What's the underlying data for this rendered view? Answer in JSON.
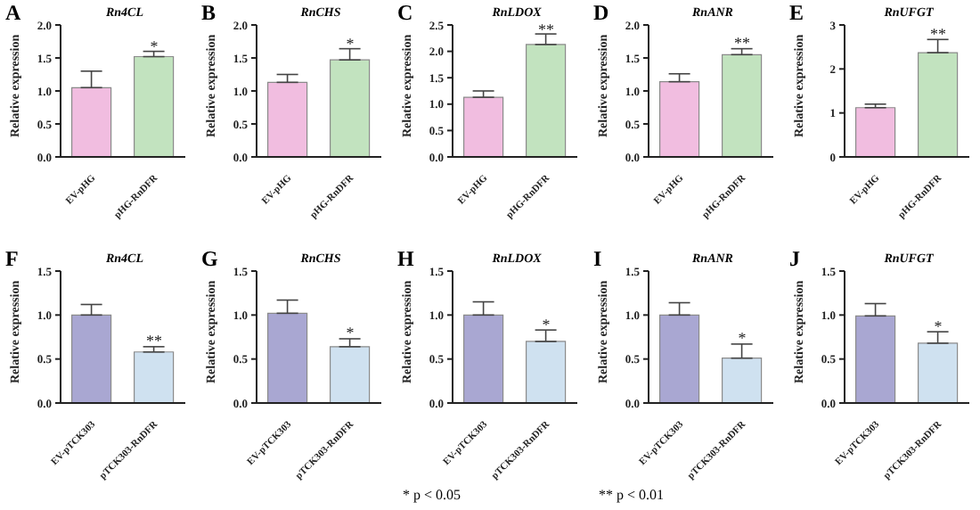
{
  "chart_data": [
    {
      "type": "bar",
      "title": "Rn4CL",
      "ylabel": "Relative expression",
      "categories": [
        "EV-pHG",
        "pHG-RnDFR"
      ],
      "values": [
        1.05,
        1.52
      ],
      "errors": [
        [
          1.05,
          1.3
        ],
        [
          1.52,
          1.6
        ]
      ],
      "colors": [
        "#f1bde0",
        "#c2e3bf"
      ],
      "ylim": [
        0,
        2
      ],
      "yticks": [
        {
          "value": 0,
          "label": "0.0"
        },
        {
          "value": 0.5,
          "label": "0.5"
        },
        {
          "value": 1,
          "label": "1.0"
        },
        {
          "value": 1.5,
          "label": "1.5"
        },
        {
          "value": 2,
          "label": "2.0"
        }
      ],
      "grid": false,
      "annotations": [
        "A",
        {
          "text": "*",
          "x": "pHG-RnDFR",
          "y": 1.68
        }
      ]
    },
    {
      "type": "bar",
      "title": "RnCHS",
      "ylabel": "Relative expression",
      "categories": [
        "EV-pHG",
        "pHG-RnDFR"
      ],
      "values": [
        1.13,
        1.47
      ],
      "errors": [
        [
          1.13,
          1.25
        ],
        [
          1.47,
          1.64
        ]
      ],
      "colors": [
        "#f1bde0",
        "#c2e3bf"
      ],
      "ylim": [
        0,
        2
      ],
      "yticks": [
        {
          "value": 0,
          "label": "0.0"
        },
        {
          "value": 0.5,
          "label": "0.5"
        },
        {
          "value": 1,
          "label": "1.0"
        },
        {
          "value": 1.5,
          "label": "1.5"
        },
        {
          "value": 2,
          "label": "2.0"
        }
      ],
      "grid": false,
      "annotations": [
        "B",
        {
          "text": "*",
          "x": "pHG-RnDFR",
          "y": 1.72
        }
      ]
    },
    {
      "type": "bar",
      "title": "RnLDOX",
      "ylabel": "Relative expression",
      "categories": [
        "EV-pHG",
        "pHG-RnDFR"
      ],
      "values": [
        1.13,
        2.13
      ],
      "errors": [
        [
          1.13,
          1.25
        ],
        [
          2.13,
          2.33
        ]
      ],
      "colors": [
        "#f1bde0",
        "#c2e3bf"
      ],
      "ylim": [
        0,
        2.5
      ],
      "yticks": [
        {
          "value": 0,
          "label": "0.0"
        },
        {
          "value": 0.5,
          "label": "0.5"
        },
        {
          "value": 1,
          "label": "1.0"
        },
        {
          "value": 1.5,
          "label": "1.5"
        },
        {
          "value": 2,
          "label": "2.0"
        },
        {
          "value": 2.5,
          "label": "2.5"
        }
      ],
      "grid": false,
      "annotations": [
        "C",
        {
          "text": "**",
          "x": "pHG-RnDFR",
          "y": 2.43
        }
      ]
    },
    {
      "type": "bar",
      "title": "RnANR",
      "ylabel": "Relative expression",
      "categories": [
        "EV-pHG",
        "pHG-RnDFR"
      ],
      "values": [
        1.14,
        1.55
      ],
      "errors": [
        [
          1.14,
          1.26
        ],
        [
          1.55,
          1.64
        ]
      ],
      "colors": [
        "#f1bde0",
        "#c2e3bf"
      ],
      "ylim": [
        0,
        2
      ],
      "yticks": [
        {
          "value": 0,
          "label": "0.0"
        },
        {
          "value": 0.5,
          "label": "0.5"
        },
        {
          "value": 1,
          "label": "1.0"
        },
        {
          "value": 1.5,
          "label": "1.5"
        },
        {
          "value": 2,
          "label": "2.0"
        }
      ],
      "grid": false,
      "annotations": [
        "D",
        {
          "text": "**",
          "x": "pHG-RnDFR",
          "y": 1.74
        }
      ]
    },
    {
      "type": "bar",
      "title": "RnUFGT",
      "ylabel": "Relative expression",
      "categories": [
        "EV-pHG",
        "pHG-RnDFR"
      ],
      "values": [
        1.12,
        2.37
      ],
      "errors": [
        [
          1.12,
          1.2
        ],
        [
          2.37,
          2.67
        ]
      ],
      "colors": [
        "#f1bde0",
        "#c2e3bf"
      ],
      "ylim": [
        0,
        3
      ],
      "yticks": [
        0,
        1,
        2,
        3
      ],
      "grid": false,
      "annotations": [
        "E",
        {
          "text": "**",
          "x": "pHG-RnDFR",
          "y": 2.8
        }
      ]
    },
    {
      "type": "bar",
      "title": "Rn4CL",
      "ylabel": "Relative expression",
      "categories": [
        "EV-pTCK303",
        "pTCK303-RnDFR"
      ],
      "values": [
        1.0,
        0.58
      ],
      "errors": [
        [
          1.0,
          1.12
        ],
        [
          0.58,
          0.64
        ]
      ],
      "colors": [
        "#a9a7d2",
        "#cfe1f0"
      ],
      "ylim": [
        0,
        1.5
      ],
      "yticks": [
        {
          "value": 0,
          "label": "0.0"
        },
        {
          "value": 0.5,
          "label": "0.5"
        },
        {
          "value": 1,
          "label": "1.0"
        },
        {
          "value": 1.5,
          "label": "1.5"
        }
      ],
      "grid": false,
      "annotations": [
        "F",
        {
          "text": "**",
          "x": "pTCK303-RnDFR",
          "y": 0.71
        }
      ]
    },
    {
      "type": "bar",
      "title": "RnCHS",
      "ylabel": "Relative expression",
      "categories": [
        "EV-pTCK303",
        "pTCK303-RnDFR"
      ],
      "values": [
        1.02,
        0.64
      ],
      "errors": [
        [
          1.02,
          1.17
        ],
        [
          0.64,
          0.73
        ]
      ],
      "colors": [
        "#a9a7d2",
        "#cfe1f0"
      ],
      "ylim": [
        0,
        1.5
      ],
      "yticks": [
        {
          "value": 0,
          "label": "0.0"
        },
        {
          "value": 0.5,
          "label": "0.5"
        },
        {
          "value": 1,
          "label": "1.0"
        },
        {
          "value": 1.5,
          "label": "1.5"
        }
      ],
      "grid": false,
      "annotations": [
        "G",
        {
          "text": "*",
          "x": "pTCK303-RnDFR",
          "y": 0.8
        }
      ]
    },
    {
      "type": "bar",
      "title": "RnLDOX",
      "ylabel": "Relative expression",
      "categories": [
        "EV-pTCK303",
        "pTCK303-RnDFR"
      ],
      "values": [
        1.0,
        0.7
      ],
      "errors": [
        [
          1.0,
          1.15
        ],
        [
          0.7,
          0.83
        ]
      ],
      "colors": [
        "#a9a7d2",
        "#cfe1f0"
      ],
      "ylim": [
        0,
        1.5
      ],
      "yticks": [
        {
          "value": 0,
          "label": "0.0"
        },
        {
          "value": 0.5,
          "label": "0.5"
        },
        {
          "value": 1,
          "label": "1.0"
        },
        {
          "value": 1.5,
          "label": "1.5"
        }
      ],
      "grid": false,
      "annotations": [
        "H",
        {
          "text": "*",
          "x": "pTCK303-RnDFR",
          "y": 0.9
        },
        "* p < 0.05"
      ]
    },
    {
      "type": "bar",
      "title": "RnANR",
      "ylabel": "Relative expression",
      "categories": [
        "EV-pTCK303",
        "pTCK303-RnDFR"
      ],
      "values": [
        1.0,
        0.51
      ],
      "errors": [
        [
          1.0,
          1.14
        ],
        [
          0.51,
          0.67
        ]
      ],
      "colors": [
        "#a9a7d2",
        "#cfe1f0"
      ],
      "ylim": [
        0,
        1.5
      ],
      "yticks": [
        {
          "value": 0,
          "label": "0.0"
        },
        {
          "value": 0.5,
          "label": "0.5"
        },
        {
          "value": 1,
          "label": "1.0"
        },
        {
          "value": 1.5,
          "label": "1.5"
        }
      ],
      "grid": false,
      "annotations": [
        "I",
        {
          "text": "*",
          "x": "pTCK303-RnDFR",
          "y": 0.74
        },
        "** p < 0.01"
      ]
    },
    {
      "type": "bar",
      "title": "RnUFGT",
      "ylabel": "Relative expression",
      "categories": [
        "EV-pTCK303",
        "pTCK303-RnDFR"
      ],
      "values": [
        0.99,
        0.68
      ],
      "errors": [
        [
          0.99,
          1.13
        ],
        [
          0.68,
          0.81
        ]
      ],
      "colors": [
        "#a9a7d2",
        "#cfe1f0"
      ],
      "ylim": [
        0,
        1.5
      ],
      "yticks": [
        {
          "value": 0,
          "label": "0.0"
        },
        {
          "value": 0.5,
          "label": "0.5"
        },
        {
          "value": 1,
          "label": "1.0"
        },
        {
          "value": 1.5,
          "label": "1.5"
        }
      ],
      "grid": false,
      "annotations": [
        "J",
        {
          "text": "*",
          "x": "pTCK303-RnDFR",
          "y": 0.88
        }
      ]
    }
  ]
}
